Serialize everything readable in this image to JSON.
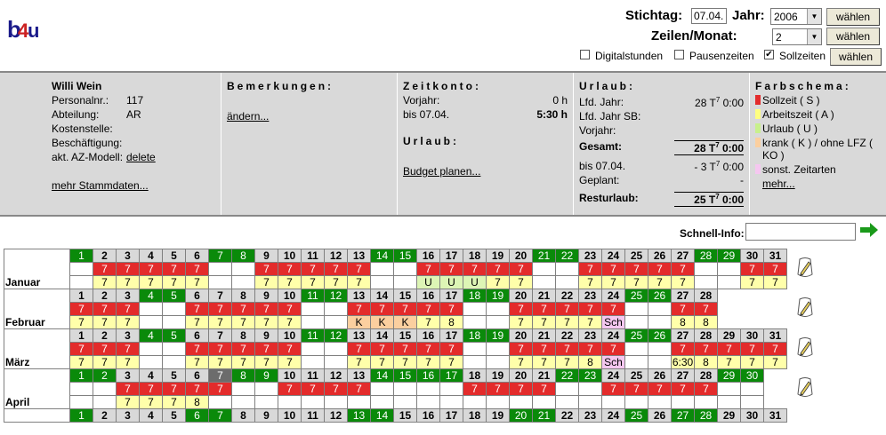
{
  "header": {
    "stichtag_label": "Stichtag:",
    "stichtag_value": "07.04.",
    "jahr_label": "Jahr:",
    "jahr_value": "2006",
    "zeilen_label": "Zeilen/Monat:",
    "zeilen_value": "2",
    "waehlen": "wählen",
    "digitalstunden": "Digitalstunden",
    "pausenzeiten": "Pausenzeiten",
    "sollzeiten": "Sollzeiten",
    "digitalstunden_checked": false,
    "pausenzeiten_checked": false,
    "sollzeiten_checked": true
  },
  "person": {
    "name": "Willi Wein",
    "personalnr_label": "Personalnr.:",
    "personalnr": "117",
    "abteilung_label": "Abteilung:",
    "abteilung": "AR",
    "kostenstelle_label": "Kostenstelle:",
    "beschaeftigung_label": "Beschäftigung:",
    "azmodell_label": "akt. AZ-Modell:",
    "azmodell_link": "delete",
    "mehr_link": "mehr Stammdaten..."
  },
  "bemerkungen": {
    "title": "Bemerkungen:",
    "link": "ändern..."
  },
  "zeitkonto": {
    "title": "Zeitkonto:",
    "vorjahr_label": "Vorjahr:",
    "vorjahr_value": "0 h",
    "bis_label": "bis 07.04.",
    "bis_value": "5:30 h",
    "urlaub_title": "Urlaub:",
    "budget_link": "Budget planen..."
  },
  "urlaub": {
    "title": "Urlaub:",
    "rows": [
      {
        "label": "Lfd. Jahr:",
        "value": "28 T",
        "sup": "7",
        "suffix": " 0:00"
      },
      {
        "label": "Lfd. Jahr SB:",
        "value": "",
        "sup": "",
        "suffix": ""
      },
      {
        "label": "Vorjahr:",
        "value": "",
        "sup": "",
        "suffix": ""
      },
      {
        "label": "Gesamt:",
        "value": "28 T",
        "sup": "7",
        "suffix": " 0:00"
      },
      {
        "label": "bis 07.04.",
        "value": "- 3 T",
        "sup": "7",
        "suffix": " 0:00"
      },
      {
        "label": "Geplant:",
        "value": "-",
        "sup": "",
        "suffix": ""
      },
      {
        "label": "Resturlaub:",
        "value": "25 T",
        "sup": "7",
        "suffix": " 0:00"
      }
    ]
  },
  "farbschema": {
    "title": "Farbschema:",
    "items": [
      {
        "label": "Sollzeit ( S )",
        "color": "#e32b2b"
      },
      {
        "label": "Arbeitszeit ( A )",
        "color": "#ffff80"
      },
      {
        "label": "Urlaub ( U )",
        "color": "#c8f08c"
      },
      {
        "label": "krank ( K ) / ohne LFZ (",
        "color": "#fbcf9f"
      },
      {
        "label": "KO )",
        "color": ""
      },
      {
        "label": "sonst. Zeitarten",
        "color": "#f5c7f0"
      }
    ],
    "mehr": "mehr..."
  },
  "schnell_info": {
    "label": "Schnell-Info:",
    "value": ""
  },
  "calendar": {
    "months": [
      {
        "name": "Januar",
        "days": [
          "1",
          "2",
          "3",
          "4",
          "5",
          "6",
          "7",
          "8",
          "9",
          "10",
          "11",
          "12",
          "13",
          "14",
          "15",
          "16",
          "17",
          "18",
          "19",
          "20",
          "21",
          "22",
          "23",
          "24",
          "25",
          "26",
          "27",
          "28",
          "29",
          "30",
          "31"
        ],
        "day_types": [
          "we",
          "hd",
          "hd",
          "hd",
          "hd",
          "hd",
          "we",
          "we",
          "hd",
          "hd",
          "hd",
          "hd",
          "hd",
          "we",
          "we",
          "hd",
          "hd",
          "hd",
          "hd",
          "hd",
          "we",
          "we",
          "hd",
          "hd",
          "hd",
          "hd",
          "hd",
          "we",
          "we",
          "hd",
          "hd"
        ],
        "soll": [
          "",
          "7",
          "7",
          "7",
          "7",
          "7",
          "",
          "",
          "7",
          "7",
          "7",
          "7",
          "7",
          "",
          "",
          "7",
          "7",
          "7",
          "7",
          "7",
          "",
          "",
          "7",
          "7",
          "7",
          "7",
          "7",
          "",
          "",
          "7",
          "7"
        ],
        "soll_cls": [
          "e",
          "r",
          "r",
          "r",
          "r",
          "r",
          "e",
          "e",
          "r",
          "r",
          "r",
          "r",
          "r",
          "e",
          "e",
          "r",
          "r",
          "r",
          "r",
          "r",
          "e",
          "e",
          "r",
          "r",
          "r",
          "r",
          "r",
          "e",
          "e",
          "r",
          "r"
        ],
        "ist": [
          "",
          "7",
          "7",
          "7",
          "7",
          "7",
          "",
          "",
          "7",
          "7",
          "7",
          "7",
          "7",
          "",
          "",
          "U",
          "U",
          "U",
          "7",
          "7",
          "",
          "",
          "7",
          "7",
          "7",
          "7",
          "7",
          "",
          "",
          "7",
          "7"
        ],
        "ist_cls": [
          "e",
          "y",
          "y",
          "y",
          "y",
          "y",
          "e",
          "e",
          "y",
          "y",
          "y",
          "y",
          "y",
          "e",
          "e",
          "g",
          "g",
          "g",
          "y",
          "y",
          "e",
          "e",
          "y",
          "y",
          "y",
          "y",
          "y",
          "e",
          "e",
          "y",
          "y"
        ]
      },
      {
        "name": "Februar",
        "days": [
          "1",
          "2",
          "3",
          "4",
          "5",
          "6",
          "7",
          "8",
          "9",
          "10",
          "11",
          "12",
          "13",
          "14",
          "15",
          "16",
          "17",
          "18",
          "19",
          "20",
          "21",
          "22",
          "23",
          "24",
          "25",
          "26",
          "27",
          "28",
          "",
          "",
          ""
        ],
        "day_types": [
          "hd",
          "hd",
          "hd",
          "we",
          "we",
          "hd",
          "hd",
          "hd",
          "hd",
          "hd",
          "we",
          "we",
          "hd",
          "hd",
          "hd",
          "hd",
          "hd",
          "we",
          "we",
          "hd",
          "hd",
          "hd",
          "hd",
          "hd",
          "we",
          "we",
          "hd",
          "hd",
          "nd",
          "nd",
          "nd"
        ],
        "soll": [
          "7",
          "7",
          "7",
          "",
          "",
          "7",
          "7",
          "7",
          "7",
          "7",
          "",
          "",
          "7",
          "7",
          "7",
          "7",
          "7",
          "",
          "",
          "7",
          "7",
          "7",
          "7",
          "7",
          "",
          "",
          "7",
          "7",
          "",
          "",
          ""
        ],
        "soll_cls": [
          "r",
          "r",
          "r",
          "e",
          "e",
          "r",
          "r",
          "r",
          "r",
          "r",
          "e",
          "e",
          "r",
          "r",
          "r",
          "r",
          "r",
          "e",
          "e",
          "r",
          "r",
          "r",
          "r",
          "r",
          "e",
          "e",
          "r",
          "r",
          "nd",
          "nd",
          "nd"
        ],
        "ist": [
          "7",
          "7",
          "7",
          "",
          "",
          "7",
          "7",
          "7",
          "7",
          "7",
          "",
          "",
          "K",
          "K",
          "K",
          "7",
          "8",
          "",
          "",
          "7",
          "7",
          "7",
          "7",
          "Sch",
          "",
          "",
          "8",
          "8",
          "",
          "",
          ""
        ],
        "ist_cls": [
          "y",
          "y",
          "y",
          "e",
          "e",
          "y",
          "y",
          "y",
          "y",
          "y",
          "e",
          "e",
          "k",
          "k",
          "k",
          "y",
          "y",
          "e",
          "e",
          "y",
          "y",
          "y",
          "y",
          "p",
          "e",
          "e",
          "y",
          "y",
          "nd",
          "nd",
          "nd"
        ]
      },
      {
        "name": "März",
        "days": [
          "1",
          "2",
          "3",
          "4",
          "5",
          "6",
          "7",
          "8",
          "9",
          "10",
          "11",
          "12",
          "13",
          "14",
          "15",
          "16",
          "17",
          "18",
          "19",
          "20",
          "21",
          "22",
          "23",
          "24",
          "25",
          "26",
          "27",
          "28",
          "29",
          "30",
          "31"
        ],
        "day_types": [
          "hd",
          "hd",
          "hd",
          "we",
          "we",
          "hd",
          "hd",
          "hd",
          "hd",
          "hd",
          "we",
          "we",
          "hd",
          "hd",
          "hd",
          "hd",
          "hd",
          "we",
          "we",
          "hd",
          "hd",
          "hd",
          "hd",
          "hd",
          "we",
          "we",
          "hd",
          "hd",
          "hd",
          "hd",
          "hd"
        ],
        "soll": [
          "7",
          "7",
          "7",
          "",
          "",
          "7",
          "7",
          "7",
          "7",
          "7",
          "",
          "",
          "7",
          "7",
          "7",
          "7",
          "7",
          "",
          "",
          "7",
          "7",
          "7",
          "7",
          "7",
          "",
          "",
          "7",
          "7",
          "7",
          "7",
          "7"
        ],
        "soll_cls": [
          "r",
          "r",
          "r",
          "e",
          "e",
          "r",
          "r",
          "r",
          "r",
          "r",
          "e",
          "e",
          "r",
          "r",
          "r",
          "r",
          "r",
          "e",
          "e",
          "r",
          "r",
          "r",
          "r",
          "r",
          "e",
          "e",
          "r",
          "r",
          "r",
          "r",
          "r"
        ],
        "ist": [
          "7",
          "7",
          "7",
          "",
          "",
          "7",
          "7",
          "7",
          "7",
          "7",
          "",
          "",
          "7",
          "7",
          "7",
          "7",
          "7",
          "",
          "",
          "7",
          "7",
          "7",
          "8",
          "Sch",
          "",
          "",
          "6:30",
          "8",
          "7",
          "7",
          "7"
        ],
        "ist_cls": [
          "y",
          "y",
          "y",
          "e",
          "e",
          "y",
          "y",
          "y",
          "y",
          "y",
          "e",
          "e",
          "y",
          "y",
          "y",
          "y",
          "y",
          "e",
          "e",
          "y",
          "y",
          "y",
          "y",
          "p",
          "e",
          "e",
          "y",
          "y",
          "y",
          "y",
          "y"
        ]
      },
      {
        "name": "April",
        "days": [
          "1",
          "2",
          "3",
          "4",
          "5",
          "6",
          "7",
          "8",
          "9",
          "10",
          "11",
          "12",
          "13",
          "14",
          "15",
          "16",
          "17",
          "18",
          "19",
          "20",
          "21",
          "22",
          "23",
          "24",
          "25",
          "26",
          "27",
          "28",
          "29",
          "30",
          ""
        ],
        "day_types": [
          "we",
          "we",
          "hd",
          "hd",
          "hd",
          "hd",
          "td",
          "we",
          "we",
          "hd",
          "hd",
          "hd",
          "hd",
          "we",
          "we",
          "we",
          "we",
          "hd",
          "hd",
          "hd",
          "hd",
          "we",
          "we",
          "hd",
          "hd",
          "hd",
          "hd",
          "hd",
          "we",
          "we",
          "nd"
        ],
        "soll": [
          "",
          "",
          "7",
          "7",
          "7",
          "7",
          "7",
          "",
          "",
          "7",
          "7",
          "7",
          "7",
          "",
          "",
          "",
          "",
          "7",
          "7",
          "7",
          "7",
          "",
          "",
          "7",
          "7",
          "7",
          "7",
          "7",
          "",
          "",
          ""
        ],
        "soll_cls": [
          "e",
          "e",
          "r",
          "r",
          "r",
          "r",
          "r",
          "e",
          "e",
          "r",
          "r",
          "r",
          "r",
          "e",
          "e",
          "e",
          "e",
          "r",
          "r",
          "r",
          "r",
          "e",
          "e",
          "r",
          "r",
          "r",
          "r",
          "r",
          "e",
          "e",
          "nd"
        ],
        "ist": [
          "",
          "",
          "7",
          "7",
          "7",
          "8",
          "",
          "",
          "",
          "",
          "",
          "",
          "",
          "",
          "",
          "",
          "",
          "",
          "",
          "",
          "",
          "",
          "",
          "",
          "",
          "",
          "",
          "",
          "",
          "",
          ""
        ],
        "ist_cls": [
          "e",
          "e",
          "y",
          "y",
          "y",
          "y",
          "e",
          "e",
          "e",
          "e",
          "e",
          "e",
          "e",
          "e",
          "e",
          "e",
          "e",
          "e",
          "e",
          "e",
          "e",
          "e",
          "e",
          "e",
          "e",
          "e",
          "e",
          "e",
          "e",
          "e",
          "nd"
        ]
      }
    ],
    "partial_row": {
      "days": [
        "1",
        "2",
        "3",
        "4",
        "5",
        "6",
        "7",
        "8",
        "9",
        "10",
        "11",
        "12",
        "13",
        "14",
        "15",
        "16",
        "17",
        "18",
        "19",
        "20",
        "21",
        "22",
        "23",
        "24",
        "25",
        "26",
        "27",
        "28",
        "29",
        "30",
        "31"
      ],
      "day_types": [
        "we",
        "hd",
        "hd",
        "hd",
        "hd",
        "we",
        "we",
        "hd",
        "hd",
        "hd",
        "hd",
        "hd",
        "we",
        "we",
        "hd",
        "hd",
        "hd",
        "hd",
        "hd",
        "we",
        "we",
        "hd",
        "hd",
        "hd",
        "we",
        "hd",
        "we",
        "we",
        "hd",
        "hd",
        "hd"
      ]
    }
  }
}
